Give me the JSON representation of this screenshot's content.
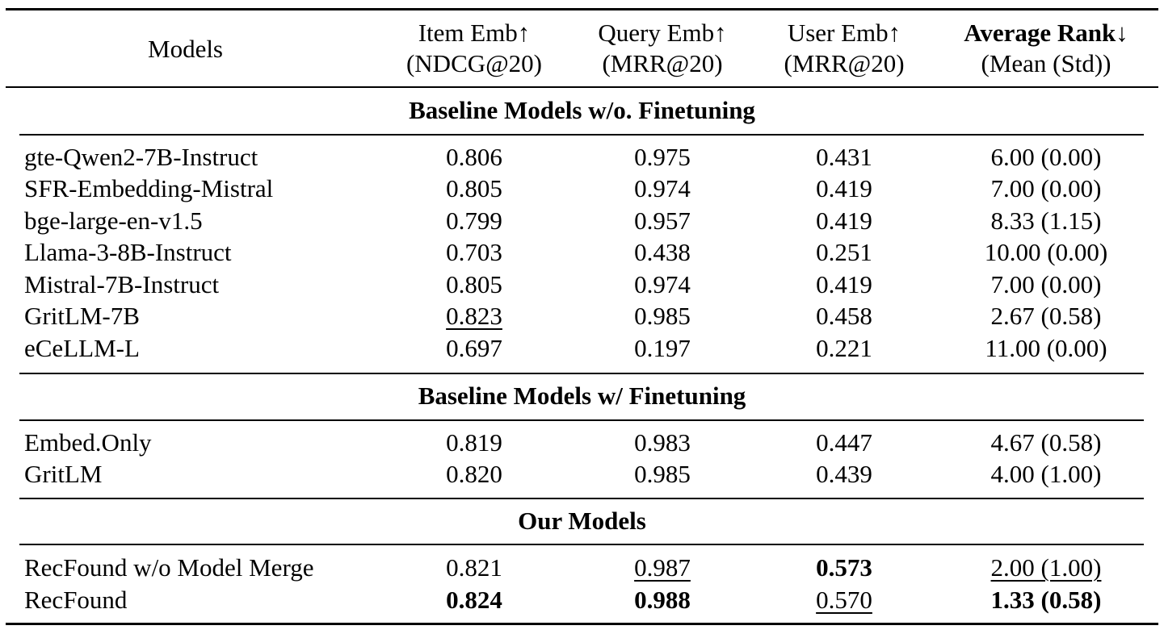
{
  "header": {
    "models": "Models",
    "item_emb": "Item Emb↑",
    "item_metric": "(NDCG@20)",
    "query_emb": "Query Emb↑",
    "query_metric": "(MRR@20)",
    "user_emb": "User Emb↑",
    "user_metric": "(MRR@20)",
    "avg_rank": "Average Rank↓",
    "avg_metric": "(Mean (Std))"
  },
  "sections": {
    "baseline_no_ft": "Baseline Models w/o. Finetuning",
    "baseline_ft": "Baseline Models w/ Finetuning",
    "ours": "Our Models"
  },
  "rows": [
    {
      "model": "gte-Qwen2-7B-Instruct",
      "item": "0.806",
      "query": "0.975",
      "user": "0.431",
      "rank": "6.00 (0.00)"
    },
    {
      "model": "SFR-Embedding-Mistral",
      "item": "0.805",
      "query": "0.974",
      "user": "0.419",
      "rank": "7.00 (0.00)"
    },
    {
      "model": "bge-large-en-v1.5",
      "item": "0.799",
      "query": "0.957",
      "user": "0.419",
      "rank": "8.33 (1.15)"
    },
    {
      "model": "Llama-3-8B-Instruct",
      "item": "0.703",
      "query": "0.438",
      "user": "0.251",
      "rank": "10.00 (0.00)"
    },
    {
      "model": "Mistral-7B-Instruct",
      "item": "0.805",
      "query": "0.974",
      "user": "0.419",
      "rank": "7.00 (0.00)"
    },
    {
      "model": "GritLM-7B",
      "item": "0.823",
      "query": "0.985",
      "user": "0.458",
      "rank": "2.67 (0.58)"
    },
    {
      "model": "eCeLLM-L",
      "item": "0.697",
      "query": "0.197",
      "user": "0.221",
      "rank": "11.00 (0.00)"
    },
    {
      "model": "Embed.Only",
      "item": "0.819",
      "query": "0.983",
      "user": "0.447",
      "rank": "4.67 (0.58)"
    },
    {
      "model": "GritLM",
      "item": "0.820",
      "query": "0.985",
      "user": "0.439",
      "rank": "4.00 (1.00)"
    },
    {
      "model": "RecFound w/o Model Merge",
      "item": "0.821",
      "query": "0.987",
      "user": "0.573",
      "rank": "2.00 (1.00)"
    },
    {
      "model": "RecFound",
      "item": "0.824",
      "query": "0.988",
      "user": "0.570",
      "rank": "1.33 (0.58)"
    }
  ]
}
